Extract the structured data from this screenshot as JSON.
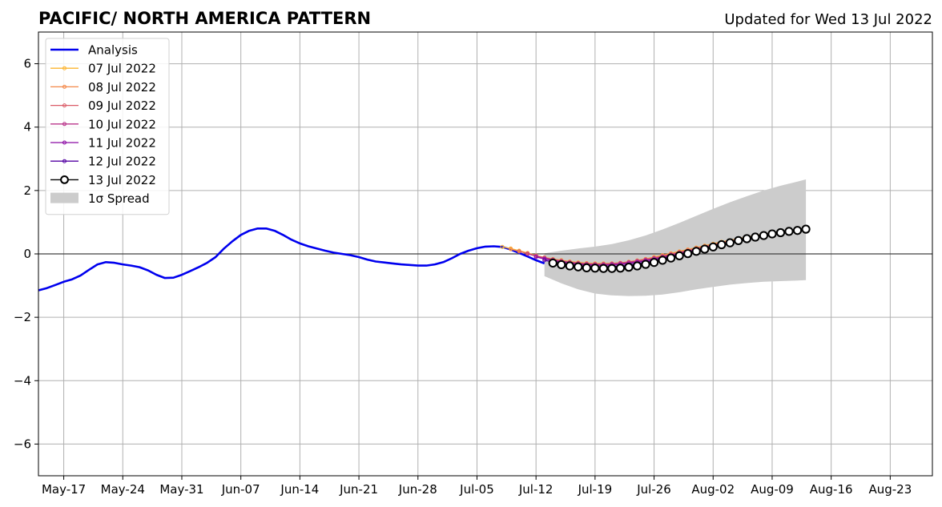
{
  "chart_data": {
    "type": "line",
    "title": "PACIFIC/ NORTH AMERICA PATTERN",
    "subtitle": "Updated for Wed 13 Jul 2022",
    "xlabel": "",
    "ylabel": "",
    "xlim": [
      "2022-05-14",
      "2022-08-28"
    ],
    "ylim": [
      -7,
      7
    ],
    "grid": true,
    "legend_position": "top-left",
    "x_ticks": [
      {
        "date": "2022-05-17",
        "label": "May-17"
      },
      {
        "date": "2022-05-24",
        "label": "May-24"
      },
      {
        "date": "2022-05-31",
        "label": "May-31"
      },
      {
        "date": "2022-06-07",
        "label": "Jun-07"
      },
      {
        "date": "2022-06-14",
        "label": "Jun-14"
      },
      {
        "date": "2022-06-21",
        "label": "Jun-21"
      },
      {
        "date": "2022-06-28",
        "label": "Jun-28"
      },
      {
        "date": "2022-07-05",
        "label": "Jul-05"
      },
      {
        "date": "2022-07-12",
        "label": "Jul-12"
      },
      {
        "date": "2022-07-19",
        "label": "Jul-19"
      },
      {
        "date": "2022-07-26",
        "label": "Jul-26"
      },
      {
        "date": "2022-08-02",
        "label": "Aug-02"
      },
      {
        "date": "2022-08-09",
        "label": "Aug-09"
      },
      {
        "date": "2022-08-16",
        "label": "Aug-16"
      },
      {
        "date": "2022-08-23",
        "label": "Aug-23"
      }
    ],
    "y_ticks": [
      {
        "value": 6,
        "label": "6"
      },
      {
        "value": 4,
        "label": "4"
      },
      {
        "value": 2,
        "label": "2"
      },
      {
        "value": 0,
        "label": "0"
      },
      {
        "value": -2,
        "label": "−2"
      },
      {
        "value": -4,
        "label": "−4"
      },
      {
        "value": -6,
        "label": "−6"
      }
    ],
    "legend": [
      {
        "label": "Analysis",
        "color": "#0000ee",
        "kind": "thick-line"
      },
      {
        "label": "07 Jul 2022",
        "color": "#fdb42f",
        "kind": "line-dot"
      },
      {
        "label": "08 Jul 2022",
        "color": "#f48849",
        "kind": "line-dot"
      },
      {
        "label": "09 Jul 2022",
        "color": "#db5c68",
        "kind": "line-dot"
      },
      {
        "label": "10 Jul 2022",
        "color": "#b83289",
        "kind": "line-dot"
      },
      {
        "label": "11 Jul 2022",
        "color": "#8b0aa5",
        "kind": "line-dot"
      },
      {
        "label": "12 Jul 2022",
        "color": "#5302a3",
        "kind": "line-dot"
      },
      {
        "label": "13 Jul 2022",
        "color": "#000000",
        "kind": "line-circle"
      },
      {
        "label": "1σ Spread",
        "color": "#cccccc",
        "kind": "patch"
      }
    ],
    "analysis": {
      "color": "#0000ee",
      "points": [
        [
          "2022-05-14",
          -1.15
        ],
        [
          "2022-05-15",
          -1.08
        ],
        [
          "2022-05-16",
          -0.98
        ],
        [
          "2022-05-17",
          -0.88
        ],
        [
          "2022-05-18",
          -0.8
        ],
        [
          "2022-05-19",
          -0.68
        ],
        [
          "2022-05-20",
          -0.5
        ],
        [
          "2022-05-21",
          -0.33
        ],
        [
          "2022-05-22",
          -0.26
        ],
        [
          "2022-05-23",
          -0.28
        ],
        [
          "2022-05-24",
          -0.33
        ],
        [
          "2022-05-25",
          -0.37
        ],
        [
          "2022-05-26",
          -0.42
        ],
        [
          "2022-05-27",
          -0.52
        ],
        [
          "2022-05-28",
          -0.66
        ],
        [
          "2022-05-29",
          -0.76
        ],
        [
          "2022-05-30",
          -0.75
        ],
        [
          "2022-05-31",
          -0.66
        ],
        [
          "2022-06-01",
          -0.54
        ],
        [
          "2022-06-02",
          -0.42
        ],
        [
          "2022-06-03",
          -0.28
        ],
        [
          "2022-06-04",
          -0.1
        ],
        [
          "2022-06-05",
          0.17
        ],
        [
          "2022-06-06",
          0.4
        ],
        [
          "2022-06-07",
          0.6
        ],
        [
          "2022-06-08",
          0.73
        ],
        [
          "2022-06-09",
          0.8
        ],
        [
          "2022-06-10",
          0.8
        ],
        [
          "2022-06-11",
          0.73
        ],
        [
          "2022-06-12",
          0.6
        ],
        [
          "2022-06-13",
          0.45
        ],
        [
          "2022-06-14",
          0.33
        ],
        [
          "2022-06-15",
          0.24
        ],
        [
          "2022-06-16",
          0.17
        ],
        [
          "2022-06-17",
          0.1
        ],
        [
          "2022-06-18",
          0.04
        ],
        [
          "2022-06-19",
          0.0
        ],
        [
          "2022-06-20",
          -0.04
        ],
        [
          "2022-06-21",
          -0.1
        ],
        [
          "2022-06-22",
          -0.18
        ],
        [
          "2022-06-23",
          -0.24
        ],
        [
          "2022-06-24",
          -0.27
        ],
        [
          "2022-06-25",
          -0.3
        ],
        [
          "2022-06-26",
          -0.33
        ],
        [
          "2022-06-27",
          -0.35
        ],
        [
          "2022-06-28",
          -0.37
        ],
        [
          "2022-06-29",
          -0.37
        ],
        [
          "2022-06-30",
          -0.33
        ],
        [
          "2022-07-01",
          -0.26
        ],
        [
          "2022-07-02",
          -0.14
        ],
        [
          "2022-07-03",
          0.0
        ],
        [
          "2022-07-04",
          0.1
        ],
        [
          "2022-07-05",
          0.18
        ],
        [
          "2022-07-06",
          0.23
        ],
        [
          "2022-07-07",
          0.24
        ],
        [
          "2022-07-08",
          0.22
        ],
        [
          "2022-07-09",
          0.14
        ],
        [
          "2022-07-10",
          0.03
        ],
        [
          "2022-07-11",
          -0.08
        ],
        [
          "2022-07-12",
          -0.2
        ],
        [
          "2022-07-13",
          -0.3
        ]
      ]
    },
    "spread": {
      "color": "#cccccc",
      "upper": [
        [
          "2022-07-13",
          0.02
        ],
        [
          "2022-07-15",
          0.1
        ],
        [
          "2022-07-17",
          0.17
        ],
        [
          "2022-07-19",
          0.23
        ],
        [
          "2022-07-21",
          0.31
        ],
        [
          "2022-07-23",
          0.43
        ],
        [
          "2022-07-25",
          0.58
        ],
        [
          "2022-07-27",
          0.77
        ],
        [
          "2022-07-29",
          0.98
        ],
        [
          "2022-07-31",
          1.2
        ],
        [
          "2022-08-02",
          1.42
        ],
        [
          "2022-08-04",
          1.63
        ],
        [
          "2022-08-06",
          1.82
        ],
        [
          "2022-08-08",
          2.0
        ],
        [
          "2022-08-10",
          2.15
        ],
        [
          "2022-08-12",
          2.28
        ],
        [
          "2022-08-13",
          2.35
        ]
      ],
      "lower": [
        [
          "2022-07-13",
          -0.7
        ],
        [
          "2022-07-15",
          -0.93
        ],
        [
          "2022-07-17",
          -1.12
        ],
        [
          "2022-07-19",
          -1.25
        ],
        [
          "2022-07-21",
          -1.31
        ],
        [
          "2022-07-23",
          -1.33
        ],
        [
          "2022-07-25",
          -1.32
        ],
        [
          "2022-07-27",
          -1.28
        ],
        [
          "2022-07-29",
          -1.21
        ],
        [
          "2022-07-31",
          -1.12
        ],
        [
          "2022-08-02",
          -1.04
        ],
        [
          "2022-08-04",
          -0.97
        ],
        [
          "2022-08-06",
          -0.92
        ],
        [
          "2022-08-08",
          -0.88
        ],
        [
          "2022-08-10",
          -0.86
        ],
        [
          "2022-08-12",
          -0.84
        ],
        [
          "2022-08-13",
          -0.83
        ]
      ]
    },
    "forecasts": [
      {
        "name": "07 Jul 2022",
        "color": "#fdb42f",
        "start": "2022-07-08",
        "values": [
          0.22,
          0.17,
          0.1,
          0.03,
          -0.05,
          -0.11,
          -0.16,
          -0.2,
          -0.24,
          -0.27,
          -0.29,
          -0.3,
          -0.3,
          -0.3,
          -0.28,
          -0.25,
          -0.21,
          -0.16,
          -0.1,
          -0.04,
          0.02,
          0.08,
          0.14,
          0.2,
          0.26,
          0.32,
          0.38,
          0.43,
          0.48,
          0.53,
          0.58,
          0.62,
          0.66,
          0.7,
          0.74
        ]
      },
      {
        "name": "08 Jul 2022",
        "color": "#f48849",
        "start": "2022-07-09",
        "values": [
          0.15,
          0.08,
          0.01,
          -0.06,
          -0.12,
          -0.17,
          -0.21,
          -0.25,
          -0.28,
          -0.3,
          -0.31,
          -0.31,
          -0.3,
          -0.28,
          -0.25,
          -0.21,
          -0.16,
          -0.11,
          -0.05,
          0.01,
          0.07,
          0.13,
          0.19,
          0.25,
          0.31,
          0.37,
          0.42,
          0.47,
          0.52,
          0.57,
          0.61,
          0.65,
          0.69,
          0.73,
          0.76
        ]
      },
      {
        "name": "09 Jul 2022",
        "color": "#db5c68",
        "start": "2022-07-10",
        "values": [
          0.08,
          0.01,
          -0.06,
          -0.12,
          -0.18,
          -0.22,
          -0.26,
          -0.29,
          -0.31,
          -0.32,
          -0.32,
          -0.31,
          -0.29,
          -0.26,
          -0.22,
          -0.18,
          -0.13,
          -0.07,
          -0.01,
          0.05,
          0.11,
          0.17,
          0.23,
          0.29,
          0.35,
          0.4,
          0.45,
          0.5,
          0.55,
          0.59,
          0.63,
          0.67,
          0.71,
          0.74
        ]
      },
      {
        "name": "10 Jul 2022",
        "color": "#b83289",
        "start": "2022-07-11",
        "values": [
          0.0,
          -0.07,
          -0.13,
          -0.18,
          -0.23,
          -0.27,
          -0.3,
          -0.32,
          -0.33,
          -0.33,
          -0.32,
          -0.3,
          -0.27,
          -0.23,
          -0.19,
          -0.14,
          -0.09,
          -0.03,
          0.03,
          0.09,
          0.15,
          0.21,
          0.27,
          0.33,
          0.38,
          0.44,
          0.49,
          0.53,
          0.58,
          0.62,
          0.66,
          0.7,
          0.73
        ]
      },
      {
        "name": "11 Jul 2022",
        "color": "#8b0aa5",
        "start": "2022-07-12",
        "values": [
          -0.1,
          -0.16,
          -0.21,
          -0.26,
          -0.3,
          -0.33,
          -0.35,
          -0.36,
          -0.36,
          -0.35,
          -0.33,
          -0.3,
          -0.26,
          -0.22,
          -0.17,
          -0.12,
          -0.06,
          0.0,
          0.06,
          0.12,
          0.18,
          0.24,
          0.3,
          0.36,
          0.41,
          0.46,
          0.51,
          0.56,
          0.6,
          0.64,
          0.68,
          0.72
        ]
      },
      {
        "name": "12 Jul 2022",
        "color": "#5302a3",
        "start": "2022-07-13",
        "values": [
          -0.2,
          -0.26,
          -0.31,
          -0.35,
          -0.38,
          -0.4,
          -0.41,
          -0.41,
          -0.4,
          -0.38,
          -0.35,
          -0.31,
          -0.26,
          -0.21,
          -0.15,
          -0.09,
          -0.03,
          0.03,
          0.1,
          0.16,
          0.22,
          0.28,
          0.34,
          0.4,
          0.45,
          0.5,
          0.55,
          0.6,
          0.64,
          0.68,
          0.72
        ]
      },
      {
        "name": "13 Jul 2022",
        "color": "#000000",
        "marker": "circle",
        "start": "2022-07-14",
        "values": [
          -0.29,
          -0.34,
          -0.38,
          -0.41,
          -0.44,
          -0.45,
          -0.46,
          -0.46,
          -0.45,
          -0.42,
          -0.38,
          -0.33,
          -0.27,
          -0.2,
          -0.13,
          -0.06,
          0.01,
          0.08,
          0.15,
          0.22,
          0.29,
          0.35,
          0.42,
          0.48,
          0.53,
          0.58,
          0.63,
          0.67,
          0.71,
          0.74,
          0.78
        ]
      }
    ]
  }
}
